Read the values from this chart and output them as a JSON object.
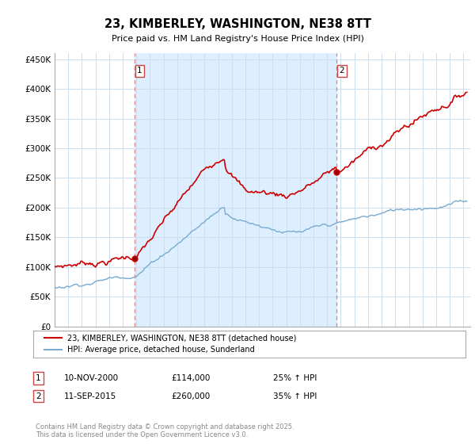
{
  "title": "23, KIMBERLEY, WASHINGTON, NE38 8TT",
  "subtitle": "Price paid vs. HM Land Registry's House Price Index (HPI)",
  "ylabel_ticks": [
    "£0",
    "£50K",
    "£100K",
    "£150K",
    "£200K",
    "£250K",
    "£300K",
    "£350K",
    "£400K",
    "£450K"
  ],
  "ytick_values": [
    0,
    50000,
    100000,
    150000,
    200000,
    250000,
    300000,
    350000,
    400000,
    450000
  ],
  "ylim": [
    0,
    460000
  ],
  "xlim_start": 1995,
  "xlim_end": 2025.5,
  "sale1_year": 2000.87,
  "sale1_price": 114000,
  "sale2_year": 2015.7,
  "sale2_price": 260000,
  "red_color": "#cc0000",
  "blue_color": "#7aabcf",
  "vline_color": "#e08080",
  "shade_color": "#ddeeff",
  "legend_entry1": "23, KIMBERLEY, WASHINGTON, NE38 8TT (detached house)",
  "legend_entry2": "HPI: Average price, detached house, Sunderland",
  "annotation1_date": "10-NOV-2000",
  "annotation1_price": "£114,000",
  "annotation1_hpi": "25% ↑ HPI",
  "annotation2_date": "11-SEP-2015",
  "annotation2_price": "£260,000",
  "annotation2_hpi": "35% ↑ HPI",
  "footer": "Contains HM Land Registry data © Crown copyright and database right 2025.\nThis data is licensed under the Open Government Licence v3.0.",
  "background_color": "#ffffff",
  "grid_color": "#ccddee"
}
